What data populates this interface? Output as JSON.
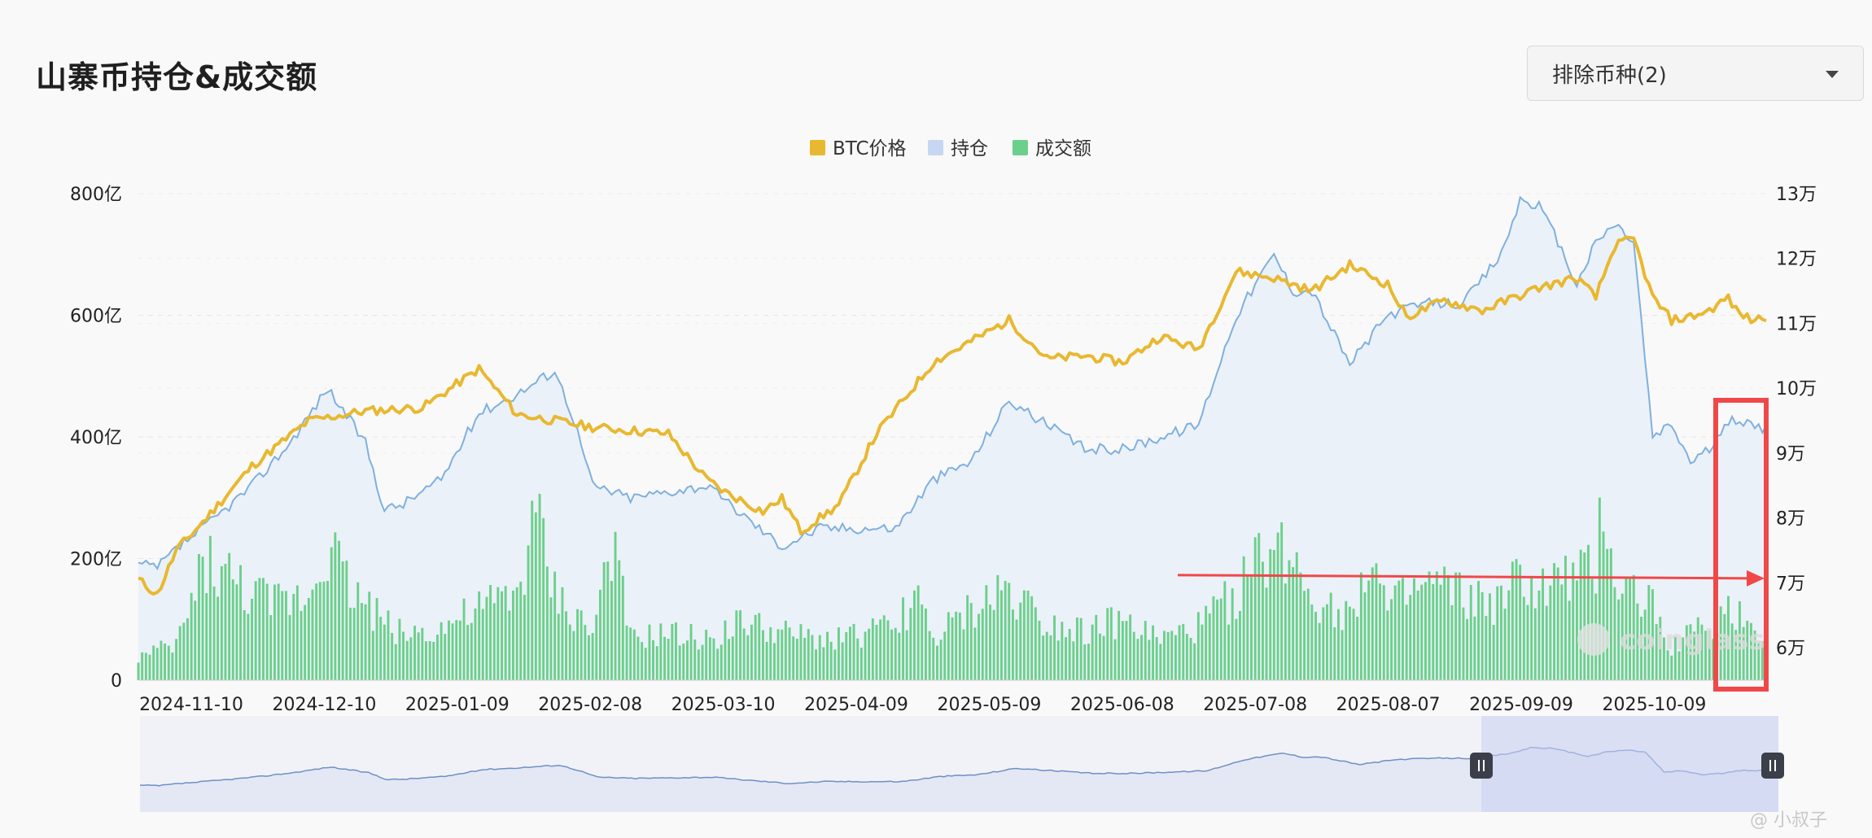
{
  "header": {
    "title": "山寨币持仓&成交额",
    "filter_label": "排除币种(2)"
  },
  "watermark": {
    "brand": "coinglass",
    "handle": "@ 小叔子"
  },
  "colors": {
    "btc": "#e8b830",
    "oi_line": "#7fb0de",
    "oi_fill": "#e9eff8",
    "volume": "#6ccf8b",
    "annotation": "#f04848"
  },
  "chart_data": {
    "type": "bar+line",
    "legend": [
      "BTC价格",
      "持仓",
      "成交额"
    ],
    "legend_position": "top-center",
    "x_ticks": [
      "2024-11-10",
      "2024-12-10",
      "2025-01-09",
      "2025-02-08",
      "2025-03-10",
      "2025-04-09",
      "2025-05-09",
      "2025-06-08",
      "2025-07-08",
      "2025-08-07",
      "2025-09-09",
      "2025-10-09"
    ],
    "y_left": {
      "ticks": [
        "0",
        "200亿",
        "400亿",
        "600亿",
        "800亿"
      ],
      "range": [
        0,
        800
      ],
      "unit": "亿"
    },
    "y_right": {
      "ticks": [
        "6万",
        "7万",
        "8万",
        "9万",
        "10万",
        "11万",
        "12万",
        "13万"
      ],
      "range": [
        55000,
        130000
      ]
    },
    "grid": "horizontal dashed",
    "series": [
      {
        "name": "BTC价格",
        "axis": "right",
        "keypoints": [
          [
            0,
            70500
          ],
          [
            5,
            68200
          ],
          [
            10,
            75000
          ],
          [
            18,
            80000
          ],
          [
            30,
            88000
          ],
          [
            45,
            95000
          ],
          [
            60,
            96500
          ],
          [
            75,
            97000
          ],
          [
            90,
            103000
          ],
          [
            100,
            96000
          ],
          [
            120,
            94000
          ],
          [
            140,
            93000
          ],
          [
            150,
            86000
          ],
          [
            155,
            84000
          ],
          [
            165,
            81000
          ],
          [
            170,
            83000
          ],
          [
            175,
            78000
          ],
          [
            185,
            82000
          ],
          [
            195,
            93000
          ],
          [
            210,
            104000
          ],
          [
            230,
            110500
          ],
          [
            240,
            104500
          ],
          [
            250,
            105000
          ],
          [
            260,
            104000
          ],
          [
            270,
            108000
          ],
          [
            280,
            106000
          ],
          [
            290,
            118000
          ],
          [
            300,
            117000
          ],
          [
            310,
            115000
          ],
          [
            320,
            119000
          ],
          [
            330,
            116000
          ],
          [
            335,
            111000
          ],
          [
            345,
            113500
          ],
          [
            355,
            112000
          ],
          [
            370,
            115500
          ],
          [
            380,
            117000
          ],
          [
            385,
            114000
          ],
          [
            390,
            122000
          ],
          [
            395,
            123000
          ],
          [
            400,
            114000
          ],
          [
            405,
            110500
          ],
          [
            410,
            111000
          ],
          [
            415,
            112000
          ],
          [
            420,
            114000
          ],
          [
            422,
            112000
          ],
          [
            426,
            110500
          ],
          [
            430,
            111000
          ]
        ]
      },
      {
        "name": "持仓",
        "axis": "left",
        "keypoints": [
          [
            0,
            190
          ],
          [
            5,
            185
          ],
          [
            10,
            215
          ],
          [
            20,
            265
          ],
          [
            30,
            320
          ],
          [
            40,
            390
          ],
          [
            50,
            480
          ],
          [
            60,
            390
          ],
          [
            65,
            280
          ],
          [
            70,
            290
          ],
          [
            80,
            330
          ],
          [
            90,
            440
          ],
          [
            100,
            470
          ],
          [
            110,
            510
          ],
          [
            115,
            430
          ],
          [
            120,
            320
          ],
          [
            130,
            300
          ],
          [
            140,
            310
          ],
          [
            150,
            320
          ],
          [
            160,
            270
          ],
          [
            170,
            220
          ],
          [
            180,
            250
          ],
          [
            190,
            250
          ],
          [
            200,
            250
          ],
          [
            210,
            330
          ],
          [
            220,
            360
          ],
          [
            230,
            460
          ],
          [
            240,
            420
          ],
          [
            250,
            380
          ],
          [
            260,
            380
          ],
          [
            270,
            400
          ],
          [
            280,
            420
          ],
          [
            290,
            600
          ],
          [
            300,
            700
          ],
          [
            305,
            640
          ],
          [
            310,
            640
          ],
          [
            320,
            520
          ],
          [
            330,
            600
          ],
          [
            340,
            620
          ],
          [
            350,
            620
          ],
          [
            360,
            700
          ],
          [
            365,
            790
          ],
          [
            370,
            780
          ],
          [
            375,
            720
          ],
          [
            380,
            650
          ],
          [
            385,
            720
          ],
          [
            390,
            750
          ],
          [
            395,
            720
          ],
          [
            400,
            400
          ],
          [
            405,
            420
          ],
          [
            410,
            360
          ],
          [
            415,
            380
          ],
          [
            420,
            420
          ],
          [
            422,
            430
          ],
          [
            426,
            420
          ],
          [
            430,
            410
          ]
        ]
      },
      {
        "name": "成交额",
        "axis": "left",
        "keypoints": [
          [
            0,
            40
          ],
          [
            10,
            60
          ],
          [
            18,
            210
          ],
          [
            25,
            170
          ],
          [
            35,
            130
          ],
          [
            45,
            150
          ],
          [
            50,
            250
          ],
          [
            55,
            170
          ],
          [
            65,
            100
          ],
          [
            70,
            80
          ],
          [
            80,
            90
          ],
          [
            90,
            120
          ],
          [
            100,
            150
          ],
          [
            105,
            280
          ],
          [
            110,
            150
          ],
          [
            120,
            80
          ],
          [
            125,
            240
          ],
          [
            130,
            70
          ],
          [
            140,
            80
          ],
          [
            150,
            70
          ],
          [
            160,
            100
          ],
          [
            170,
            80
          ],
          [
            180,
            70
          ],
          [
            190,
            80
          ],
          [
            200,
            90
          ],
          [
            205,
            150
          ],
          [
            210,
            70
          ],
          [
            220,
            120
          ],
          [
            230,
            160
          ],
          [
            240,
            100
          ],
          [
            250,
            90
          ],
          [
            260,
            100
          ],
          [
            270,
            70
          ],
          [
            280,
            90
          ],
          [
            290,
            150
          ],
          [
            298,
            220
          ],
          [
            305,
            220
          ],
          [
            310,
            150
          ],
          [
            320,
            110
          ],
          [
            325,
            220
          ],
          [
            330,
            120
          ],
          [
            340,
            160
          ],
          [
            345,
            160
          ],
          [
            350,
            140
          ],
          [
            360,
            130
          ],
          [
            365,
            180
          ],
          [
            370,
            150
          ],
          [
            375,
            170
          ],
          [
            385,
            180
          ],
          [
            387,
            330
          ],
          [
            390,
            170
          ],
          [
            395,
            150
          ],
          [
            400,
            130
          ],
          [
            405,
            60
          ],
          [
            410,
            80
          ],
          [
            415,
            90
          ],
          [
            420,
            130
          ],
          [
            425,
            100
          ],
          [
            430,
            70
          ]
        ]
      }
    ],
    "navigator": {
      "selected_range": "2025-09 to end"
    },
    "annotations": {
      "arrow": "horizontal red arrow at about 7万 pointing right",
      "box": "red rectangle around the last period"
    }
  }
}
